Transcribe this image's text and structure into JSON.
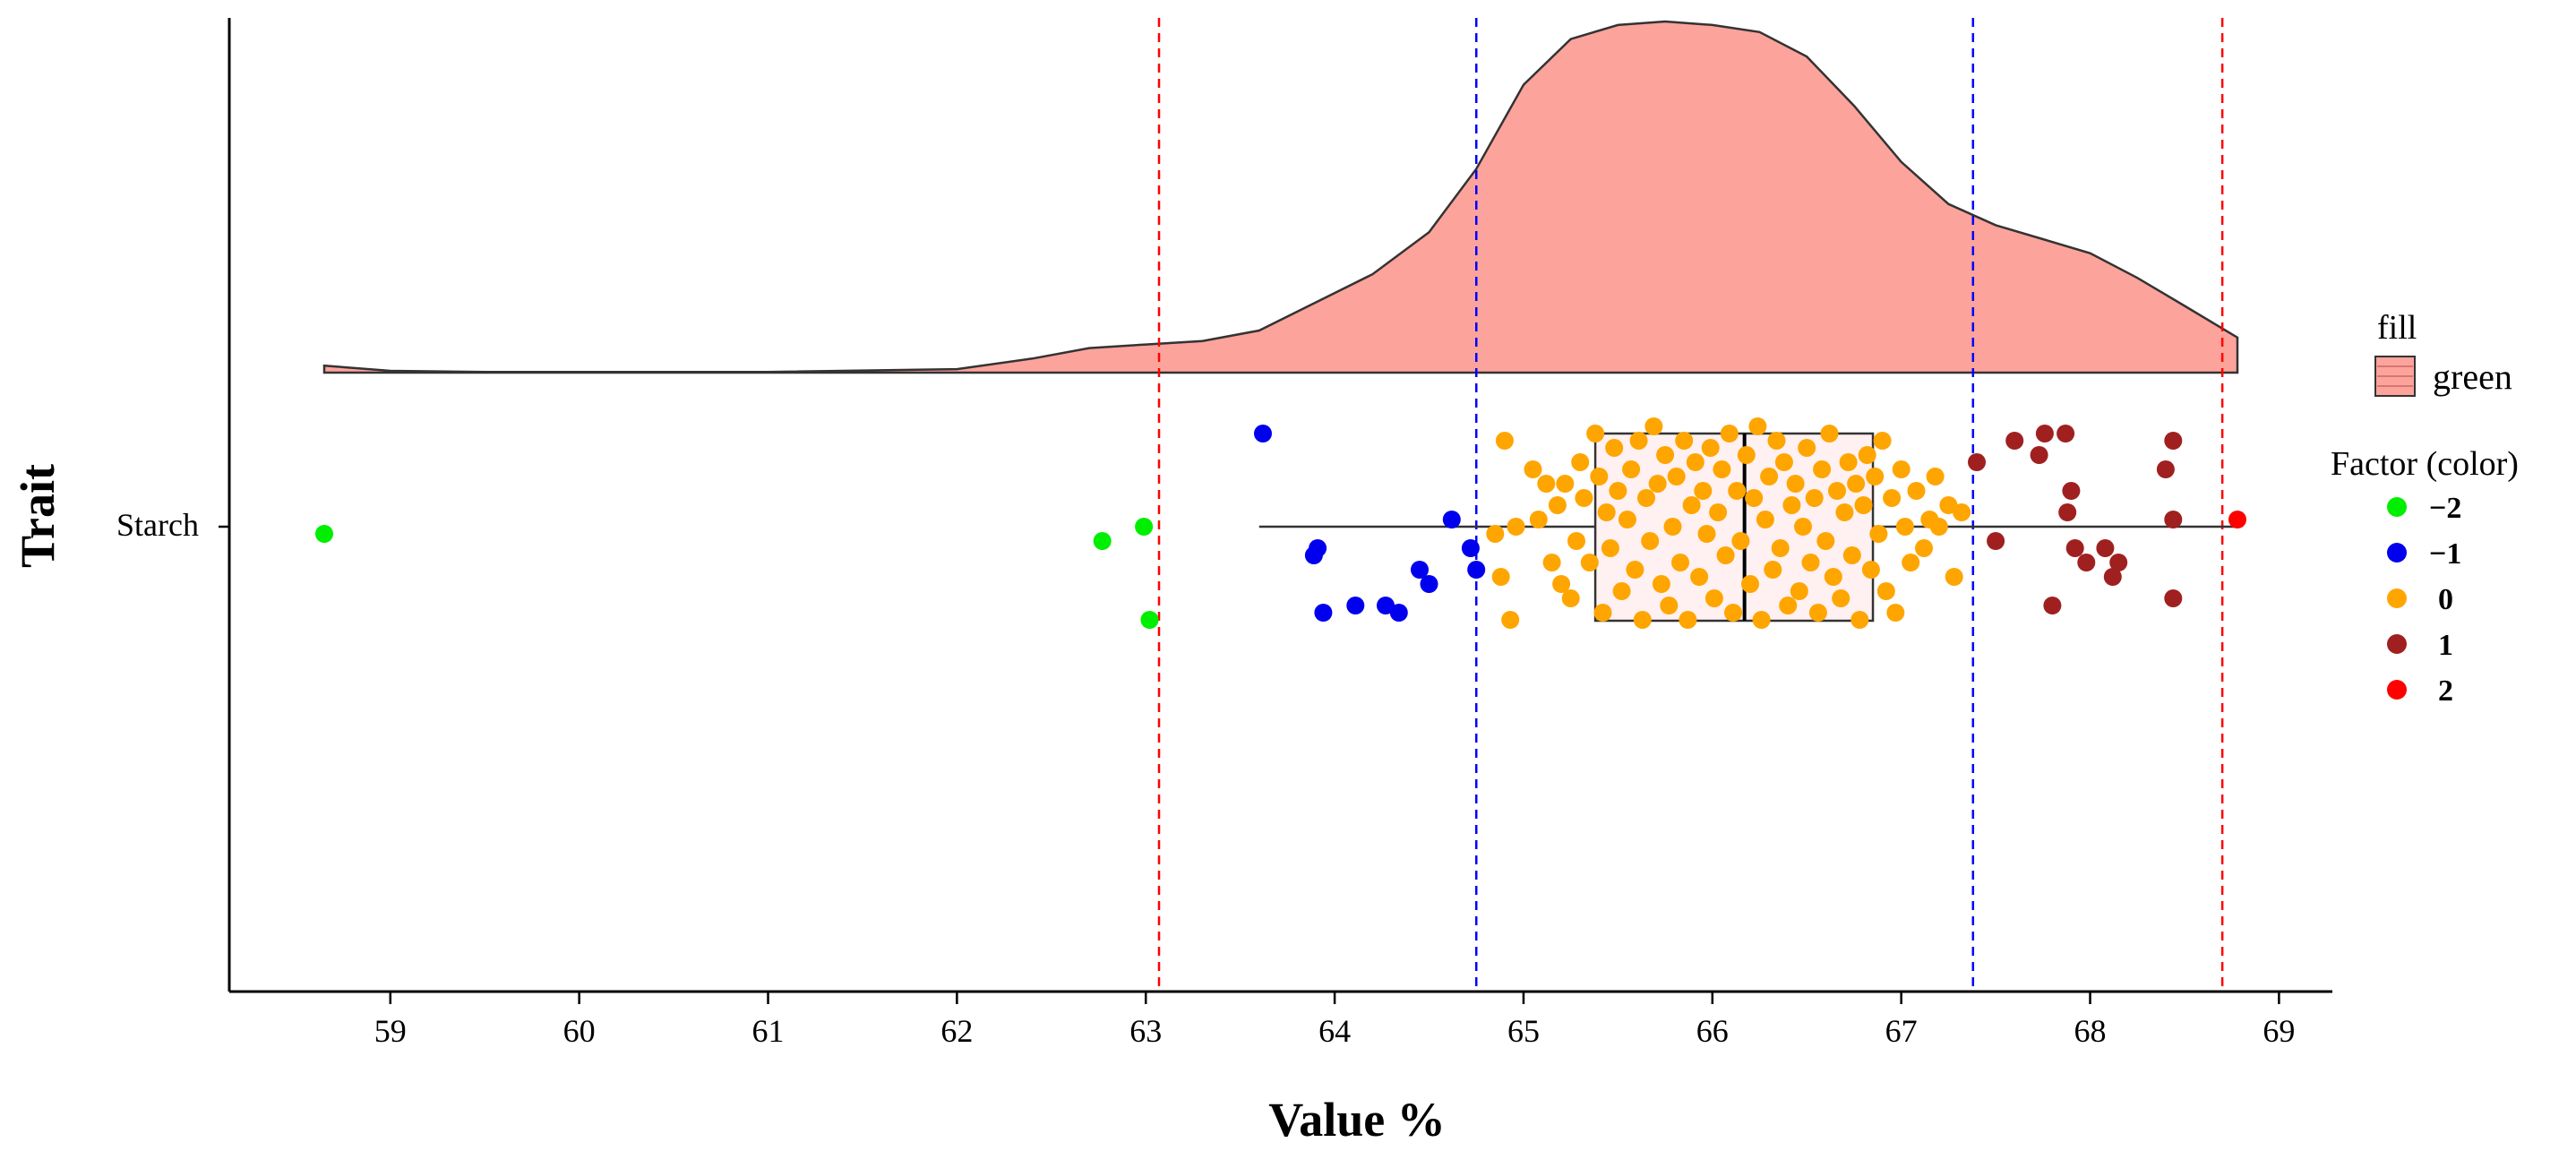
{
  "chart_data": {
    "type": "raincloud",
    "title": "",
    "xlabel": "Value %",
    "ylabel": "Trait",
    "category": "Starch",
    "xlim": [
      58.1,
      69.3
    ],
    "xticks": [
      59,
      60,
      61,
      62,
      63,
      64,
      65,
      66,
      67,
      68,
      69
    ],
    "xtick_labels": [
      "59",
      "60",
      "61",
      "62",
      "63",
      "64",
      "65",
      "66",
      "67",
      "68",
      "69"
    ],
    "vlines": [
      {
        "x": 63.07,
        "color": "#ff0000"
      },
      {
        "x": 64.75,
        "color": "#0000ff"
      },
      {
        "x": 67.38,
        "color": "#0000ff"
      },
      {
        "x": 68.7,
        "color": "#ff0000"
      }
    ],
    "density": {
      "fill": "#fca39c",
      "x": [
        58.65,
        59.0,
        59.5,
        60.0,
        61.0,
        62.0,
        62.4,
        62.7,
        63.0,
        63.3,
        63.6,
        63.9,
        64.2,
        64.5,
        64.75,
        65.0,
        65.25,
        65.5,
        65.75,
        66.0,
        66.25,
        66.5,
        66.75,
        67.0,
        67.25,
        67.5,
        67.75,
        68.0,
        68.25,
        68.5,
        68.78
      ],
      "y": [
        0.02,
        0.005,
        0.002,
        0.002,
        0.002,
        0.01,
        0.04,
        0.07,
        0.08,
        0.09,
        0.12,
        0.2,
        0.28,
        0.4,
        0.58,
        0.82,
        0.95,
        0.99,
        1.0,
        0.99,
        0.97,
        0.9,
        0.76,
        0.6,
        0.48,
        0.42,
        0.38,
        0.34,
        0.27,
        0.19,
        0.1
      ]
    },
    "boxplot": {
      "whisker_low": 63.6,
      "q1": 65.38,
      "median": 66.17,
      "q3": 66.85,
      "whisker_high": 68.78,
      "fill": "#ffecec"
    },
    "legend_fill": {
      "title": "fill",
      "label": "green",
      "color": "#fca39c"
    },
    "legend_color": {
      "title": "Factor (color)",
      "items": [
        {
          "label": "−2",
          "color": "#00ee00"
        },
        {
          "label": "−1",
          "color": "#0000ee"
        },
        {
          "label": "0",
          "color": "#ffa500"
        },
        {
          "label": "1",
          "color": "#a02020"
        },
        {
          "label": "2",
          "color": "#ff0000"
        }
      ]
    },
    "points": {
      "-2": [
        {
          "x": 58.65,
          "j": -0.01
        },
        {
          "x": 62.77,
          "j": -0.02
        },
        {
          "x": 62.99,
          "j": 0.0
        },
        {
          "x": 63.02,
          "j": -0.13
        }
      ],
      "-1": [
        {
          "x": 63.62,
          "j": 0.13
        },
        {
          "x": 63.89,
          "j": -0.04
        },
        {
          "x": 63.91,
          "j": -0.03
        },
        {
          "x": 63.94,
          "j": -0.12
        },
        {
          "x": 64.11,
          "j": -0.11
        },
        {
          "x": 64.27,
          "j": -0.11
        },
        {
          "x": 64.34,
          "j": -0.12
        },
        {
          "x": 64.45,
          "j": -0.06
        },
        {
          "x": 64.5,
          "j": -0.08
        },
        {
          "x": 64.62,
          "j": 0.01
        },
        {
          "x": 64.72,
          "j": -0.03
        },
        {
          "x": 64.75,
          "j": -0.06
        }
      ],
      "0": [
        {
          "x": 64.85,
          "j": -0.01
        },
        {
          "x": 64.88,
          "j": -0.07
        },
        {
          "x": 64.9,
          "j": 0.12
        },
        {
          "x": 64.93,
          "j": -0.13
        },
        {
          "x": 64.96,
          "j": 0.0
        },
        {
          "x": 65.05,
          "j": 0.08
        },
        {
          "x": 65.08,
          "j": 0.01
        },
        {
          "x": 65.12,
          "j": 0.06
        },
        {
          "x": 65.15,
          "j": -0.05
        },
        {
          "x": 65.18,
          "j": 0.03
        },
        {
          "x": 65.2,
          "j": -0.08
        },
        {
          "x": 65.22,
          "j": 0.06
        },
        {
          "x": 65.25,
          "j": -0.1
        },
        {
          "x": 65.28,
          "j": -0.02
        },
        {
          "x": 65.3,
          "j": 0.09
        },
        {
          "x": 65.32,
          "j": 0.04
        },
        {
          "x": 65.35,
          "j": -0.05
        },
        {
          "x": 65.38,
          "j": 0.13
        },
        {
          "x": 65.4,
          "j": 0.07
        },
        {
          "x": 65.42,
          "j": -0.12
        },
        {
          "x": 65.44,
          "j": 0.02
        },
        {
          "x": 65.46,
          "j": -0.03
        },
        {
          "x": 65.48,
          "j": 0.11
        },
        {
          "x": 65.5,
          "j": 0.05
        },
        {
          "x": 65.52,
          "j": -0.09
        },
        {
          "x": 65.55,
          "j": 0.01
        },
        {
          "x": 65.57,
          "j": 0.08
        },
        {
          "x": 65.59,
          "j": -0.06
        },
        {
          "x": 65.61,
          "j": 0.12
        },
        {
          "x": 65.63,
          "j": -0.13
        },
        {
          "x": 65.65,
          "j": 0.04
        },
        {
          "x": 65.67,
          "j": -0.02
        },
        {
          "x": 65.69,
          "j": 0.14
        },
        {
          "x": 65.71,
          "j": 0.06
        },
        {
          "x": 65.73,
          "j": -0.08
        },
        {
          "x": 65.75,
          "j": 0.1
        },
        {
          "x": 65.77,
          "j": -0.11
        },
        {
          "x": 65.79,
          "j": 0.0
        },
        {
          "x": 65.81,
          "j": 0.07
        },
        {
          "x": 65.83,
          "j": -0.05
        },
        {
          "x": 65.85,
          "j": 0.12
        },
        {
          "x": 65.87,
          "j": -0.13
        },
        {
          "x": 65.89,
          "j": 0.03
        },
        {
          "x": 65.91,
          "j": 0.09
        },
        {
          "x": 65.93,
          "j": -0.07
        },
        {
          "x": 65.95,
          "j": 0.05
        },
        {
          "x": 65.97,
          "j": -0.01
        },
        {
          "x": 65.99,
          "j": 0.11
        },
        {
          "x": 66.01,
          "j": -0.1
        },
        {
          "x": 66.03,
          "j": 0.02
        },
        {
          "x": 66.05,
          "j": 0.08
        },
        {
          "x": 66.07,
          "j": -0.04
        },
        {
          "x": 66.09,
          "j": 0.13
        },
        {
          "x": 66.11,
          "j": -0.12
        },
        {
          "x": 66.13,
          "j": 0.05
        },
        {
          "x": 66.15,
          "j": -0.02
        },
        {
          "x": 66.18,
          "j": 0.1
        },
        {
          "x": 66.2,
          "j": -0.08
        },
        {
          "x": 66.22,
          "j": 0.04
        },
        {
          "x": 66.24,
          "j": 0.14
        },
        {
          "x": 66.26,
          "j": -0.13
        },
        {
          "x": 66.28,
          "j": 0.01
        },
        {
          "x": 66.3,
          "j": 0.07
        },
        {
          "x": 66.32,
          "j": -0.06
        },
        {
          "x": 66.34,
          "j": 0.12
        },
        {
          "x": 66.36,
          "j": -0.03
        },
        {
          "x": 66.38,
          "j": 0.09
        },
        {
          "x": 66.4,
          "j": -0.11
        },
        {
          "x": 66.42,
          "j": 0.03
        },
        {
          "x": 66.44,
          "j": 0.06
        },
        {
          "x": 66.46,
          "j": -0.09
        },
        {
          "x": 66.48,
          "j": 0.0
        },
        {
          "x": 66.5,
          "j": 0.11
        },
        {
          "x": 66.52,
          "j": -0.05
        },
        {
          "x": 66.54,
          "j": 0.04
        },
        {
          "x": 66.56,
          "j": -0.12
        },
        {
          "x": 66.58,
          "j": 0.08
        },
        {
          "x": 66.6,
          "j": -0.02
        },
        {
          "x": 66.62,
          "j": 0.13
        },
        {
          "x": 66.64,
          "j": -0.07
        },
        {
          "x": 66.66,
          "j": 0.05
        },
        {
          "x": 66.68,
          "j": -0.1
        },
        {
          "x": 66.7,
          "j": 0.02
        },
        {
          "x": 66.72,
          "j": 0.09
        },
        {
          "x": 66.74,
          "j": -0.04
        },
        {
          "x": 66.76,
          "j": 0.06
        },
        {
          "x": 66.78,
          "j": -0.13
        },
        {
          "x": 66.8,
          "j": 0.03
        },
        {
          "x": 66.82,
          "j": 0.1
        },
        {
          "x": 66.84,
          "j": -0.06
        },
        {
          "x": 66.86,
          "j": 0.07
        },
        {
          "x": 66.88,
          "j": -0.01
        },
        {
          "x": 66.9,
          "j": 0.12
        },
        {
          "x": 66.92,
          "j": -0.09
        },
        {
          "x": 66.95,
          "j": 0.04
        },
        {
          "x": 66.97,
          "j": -0.12
        },
        {
          "x": 67.0,
          "j": 0.08
        },
        {
          "x": 67.02,
          "j": 0.0
        },
        {
          "x": 67.05,
          "j": -0.05
        },
        {
          "x": 67.08,
          "j": 0.05
        },
        {
          "x": 67.12,
          "j": -0.03
        },
        {
          "x": 67.15,
          "j": 0.01
        },
        {
          "x": 67.18,
          "j": 0.07
        },
        {
          "x": 67.2,
          "j": 0.0
        },
        {
          "x": 67.25,
          "j": 0.03
        },
        {
          "x": 67.28,
          "j": -0.07
        },
        {
          "x": 67.32,
          "j": 0.02
        }
      ],
      "1": [
        {
          "x": 67.4,
          "j": 0.09
        },
        {
          "x": 67.5,
          "j": -0.02
        },
        {
          "x": 67.6,
          "j": 0.12
        },
        {
          "x": 67.73,
          "j": 0.1
        },
        {
          "x": 67.76,
          "j": 0.13
        },
        {
          "x": 67.8,
          "j": -0.11
        },
        {
          "x": 67.87,
          "j": 0.13
        },
        {
          "x": 67.88,
          "j": 0.02
        },
        {
          "x": 67.9,
          "j": 0.05
        },
        {
          "x": 67.92,
          "j": -0.03
        },
        {
          "x": 67.98,
          "j": -0.05
        },
        {
          "x": 68.08,
          "j": -0.03
        },
        {
          "x": 68.12,
          "j": -0.07
        },
        {
          "x": 68.15,
          "j": -0.05
        },
        {
          "x": 68.4,
          "j": 0.08
        },
        {
          "x": 68.44,
          "j": 0.12
        },
        {
          "x": 68.44,
          "j": 0.01
        },
        {
          "x": 68.44,
          "j": -0.1
        }
      ],
      "2": [
        {
          "x": 68.78,
          "j": 0.01
        }
      ]
    }
  }
}
